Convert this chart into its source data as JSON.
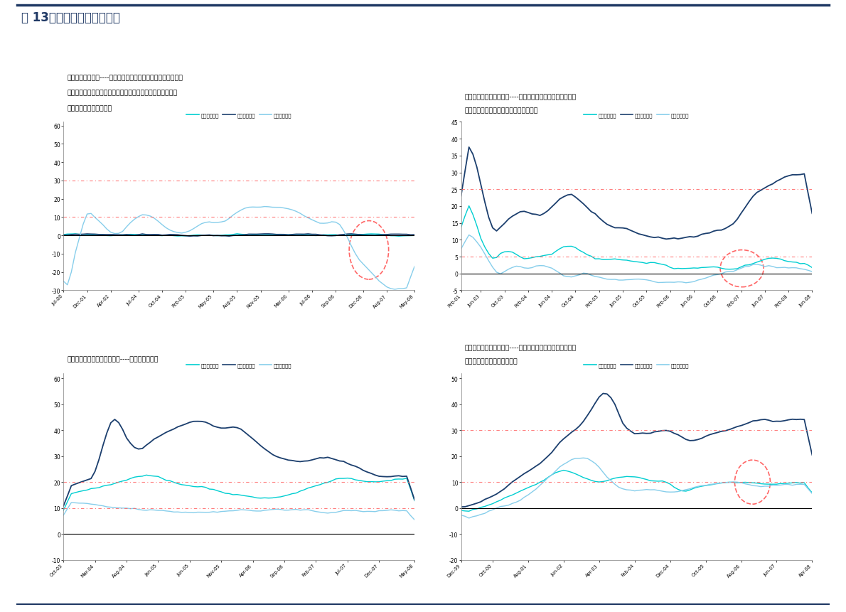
{
  "title": "图 13：子行业生命周期判断",
  "title_color": "#1F3864",
  "background": "#FFFFFF",
  "panel1": {
    "captions": [
      "图：速冻食品行业----行业依然快速成长；企业数目增速放缓显",
      "示行业内产生龙头企业，进入规模化发展阶段；从业人数快速",
      "下降显示技术升级的趋势"
    ],
    "legend": [
      "企业数目增速",
      "行业收入增速",
      "从业人数增速"
    ],
    "hlines": [
      10.0,
      30.0
    ],
    "ylim": [
      -30,
      62
    ],
    "yticks": [
      -30,
      -20,
      -10,
      0,
      10,
      20,
      30,
      40,
      50,
      60
    ],
    "xlabels": [
      "Jul-00",
      "Dec-01",
      "Apr-02",
      "Jul-04",
      "Oct-04",
      "Feb-05",
      "May-05",
      "Aug-05",
      "Nov-05",
      "Mar-06",
      "Jul-06",
      "Sep-06",
      "Dec-06",
      "Aug-07",
      "May-08"
    ]
  },
  "panel2": {
    "captions": [
      "图：液体乳和乳制品制造----企业增速缓慢显示业内整合行为",
      "已经开始；行业处于成长后期或成熟前期"
    ],
    "legend": [
      "企业数目增速",
      "行业收入增速",
      "从业人数增速"
    ],
    "hlines": [
      5.0,
      25.0
    ],
    "ylim": [
      -5,
      45
    ],
    "yticks": [
      -5,
      0,
      5,
      10,
      15,
      20,
      25,
      30,
      35,
      40,
      45
    ],
    "xlabels": [
      "Feb-01",
      "Jun-03",
      "Oct-03",
      "Feb-04",
      "Jun-04",
      "Oct-04",
      "Feb-05",
      "Jun-05",
      "Oct-05",
      "Feb-06",
      "Jun-06",
      "Oct-06",
      "Feb-07",
      "Jun-07",
      "Feb-08",
      "Jun-08"
    ]
  },
  "panel3": {
    "captions": [
      "图：其他调味品，发酵品制造----行业处于成长期"
    ],
    "legend": [
      "企业数目增速",
      "行业收入增速",
      "从业人数增速"
    ],
    "hlines": [
      10.0,
      20.0
    ],
    "ylim": [
      -10,
      62
    ],
    "yticks": [
      -10,
      0,
      10,
      20,
      30,
      40,
      50,
      60
    ],
    "xlabels": [
      "Oct-03",
      "Mar-04",
      "Aug-04",
      "Jan-05",
      "Jun-05",
      "Nov-05",
      "Apr-06",
      "Sep-06",
      "Feb-07",
      "Jul-07",
      "Dec-07",
      "May-08"
    ]
  },
  "panel4": {
    "captions": [
      "图：肉制品及副产品加工----高速成长；企业数目和从业人数",
      "的增速错位显示生产线的引进"
    ],
    "legend": [
      "企业数目增速",
      "行业收入增速",
      "从业人数增速"
    ],
    "hlines": [
      10.0,
      30.0
    ],
    "ylim": [
      -20,
      52
    ],
    "yticks": [
      -20,
      -10,
      0,
      10,
      20,
      30,
      40,
      50
    ],
    "xlabels": [
      "Dec-99",
      "Oct-00",
      "Aug-01",
      "Jun-02",
      "Apr-03",
      "Feb-04",
      "Dec-04",
      "Oct-05",
      "Aug-06",
      "Jun-07",
      "Apr-08"
    ]
  },
  "line_colors": [
    "#00CED1",
    "#1C3F6E",
    "#87CEEB"
  ],
  "hline_color": "#FF6666",
  "circle_color": "#FF6666"
}
